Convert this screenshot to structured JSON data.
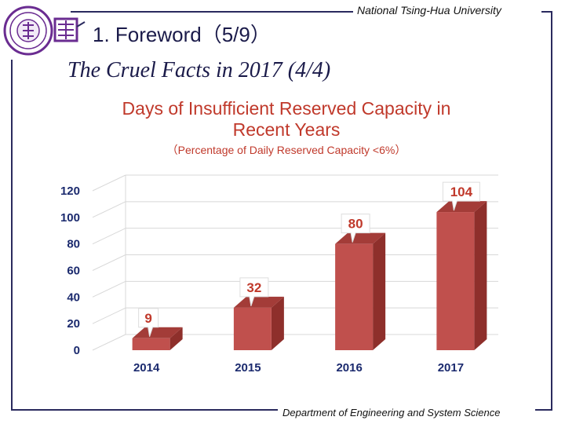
{
  "header": {
    "university": "National Tsing-Hua University",
    "section_title": "1. Foreword（5/9）",
    "slide_subtitle": "The Cruel Facts in 2017 (4/4)"
  },
  "footer": {
    "department": "Department of Engineering and System Science"
  },
  "colors": {
    "bar_front": "#c0504d",
    "bar_side": "#8e2f2b",
    "bar_top": "#a33c38",
    "title": "#c0392b",
    "axis_text": "#1b2a6e",
    "frame": "#2a2a5e"
  },
  "chart_data": {
    "type": "bar",
    "title_line1": "Days of Insufficient Reserved Capacity in",
    "title_line2": "Recent Years",
    "subtitle": "（Percentage of Daily Reserved Capacity <6%）",
    "categories": [
      "2014",
      "2015",
      "2016",
      "2017"
    ],
    "values": [
      9,
      32,
      80,
      104
    ],
    "data_labels": [
      "9",
      "32",
      "80",
      "104"
    ],
    "yticks": [
      "0",
      "20",
      "40",
      "60",
      "80",
      "100",
      "120"
    ],
    "ylim": [
      0,
      120
    ],
    "xlabel": "",
    "ylabel": "",
    "grid": true,
    "style": "3d"
  }
}
